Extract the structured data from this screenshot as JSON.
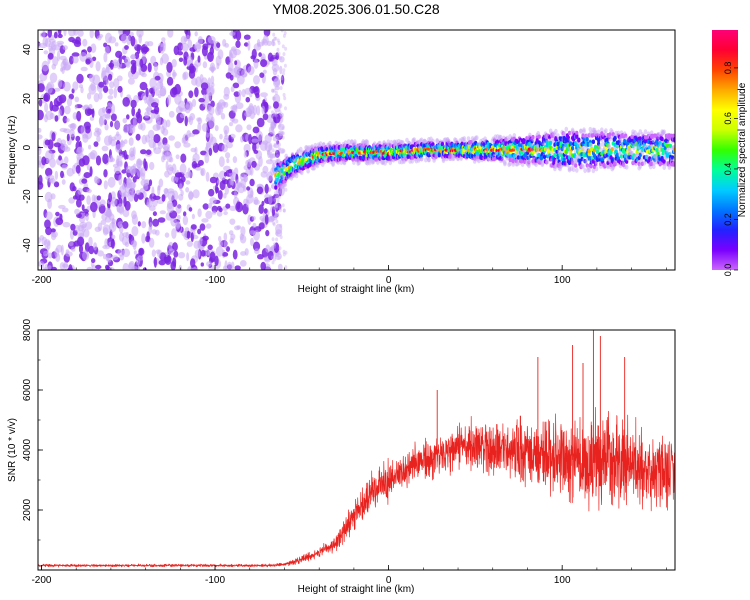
{
  "figure": {
    "title": "YM08.2025.306.01.50.C28"
  },
  "colors": {
    "sparse": "#c9a8f5",
    "dense": "#7a23e0",
    "line": "#e8231f",
    "colorbar": [
      "#cc66ff",
      "#7a00ff",
      "#2222ff",
      "#0077ff",
      "#00ccff",
      "#00ff99",
      "#33ff00",
      "#ccff00",
      "#ffff00",
      "#ffaa00",
      "#ff4400",
      "#ff0033",
      "#ff0077"
    ]
  },
  "chart_data": [
    {
      "type": "heatmap",
      "name": "spectrogram",
      "title": "",
      "xlabel": "Height of straight line (km)",
      "ylabel": "Frequency (Hz)",
      "xlim": [
        -202,
        165
      ],
      "ylim": [
        -50,
        48
      ],
      "xticks": [
        -200,
        -100,
        0,
        100
      ],
      "yticks": [
        -40,
        -20,
        0,
        20,
        40
      ],
      "noise_region_x": [
        -202,
        -65
      ],
      "signal_band": {
        "x": [
          -65,
          -55,
          -40,
          -25,
          -10,
          0,
          20,
          40,
          60,
          80,
          100,
          120,
          140,
          165
        ],
        "center_hz": [
          -12,
          -7,
          -3,
          -2,
          -2,
          -2,
          -1,
          -1,
          -1,
          -1,
          -1,
          -1,
          -1,
          -1
        ],
        "halfwidth_hz": [
          5,
          4,
          3,
          3,
          3,
          3,
          3,
          3,
          4,
          5,
          7,
          7,
          6,
          6
        ]
      },
      "colorbar": {
        "label": "Normalized spectral amplitude",
        "range": [
          0.0,
          0.95
        ],
        "ticks": [
          "0.0",
          "0.2",
          "0.4",
          "0.6",
          "0.8"
        ]
      }
    },
    {
      "type": "line",
      "name": "snr",
      "title": "",
      "xlabel": "Height of straight line (km)",
      "ylabel": "SNR (10 * v/v)",
      "xlim": [
        -202,
        165
      ],
      "ylim": [
        0,
        8000
      ],
      "xticks": [
        -200,
        -100,
        0,
        100
      ],
      "yticks": [
        2000,
        4000,
        6000,
        8000
      ],
      "envelope": {
        "x": [
          -202,
          -70,
          -60,
          -50,
          -40,
          -30,
          -20,
          -10,
          0,
          10,
          20,
          30,
          40,
          50,
          60,
          70,
          80,
          90,
          100,
          110,
          120,
          130,
          140,
          150,
          165
        ],
        "mean": [
          150,
          150,
          180,
          350,
          600,
          900,
          1800,
          2600,
          3000,
          3300,
          3600,
          3900,
          4100,
          4150,
          4100,
          4000,
          3900,
          3800,
          3700,
          3650,
          3600,
          3550,
          3500,
          3450,
          3400
        ],
        "noise": [
          60,
          60,
          80,
          150,
          250,
          400,
          700,
          800,
          900,
          950,
          1000,
          1050,
          1100,
          1150,
          1200,
          1300,
          1500,
          1700,
          1900,
          2000,
          2100,
          2000,
          1900,
          1800,
          1700
        ]
      },
      "peaks": [
        {
          "x": 118,
          "y": 8100
        },
        {
          "x": 122,
          "y": 7800
        },
        {
          "x": 106,
          "y": 7500
        },
        {
          "x": 86,
          "y": 7100
        },
        {
          "x": 136,
          "y": 7100
        },
        {
          "x": 112,
          "y": 6900
        },
        {
          "x": 28,
          "y": 6000
        }
      ]
    }
  ]
}
